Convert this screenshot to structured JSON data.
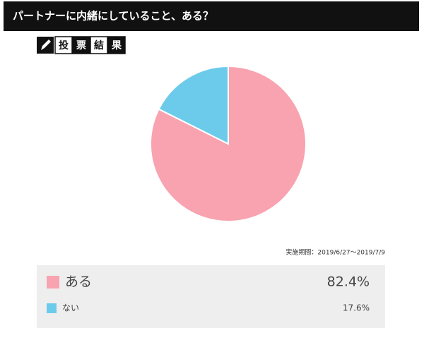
{
  "header": {
    "title": "パートナーに内緒にしていること、ある？"
  },
  "badge": [
    "投",
    "票",
    "結",
    "果"
  ],
  "chart_data": {
    "type": "pie",
    "categories": [
      "ある",
      "ない"
    ],
    "values": [
      82.4,
      17.6
    ],
    "value_labels": [
      "82.4%",
      "17.6%"
    ],
    "colors": [
      "#f8a3af",
      "#6ccbeb"
    ],
    "period": "実施期間：2019/6/27〜2019/7/9"
  }
}
